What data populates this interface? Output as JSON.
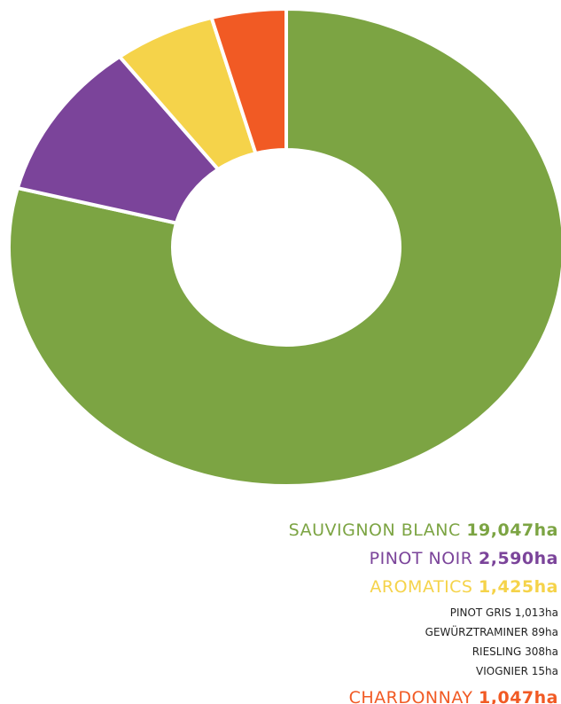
{
  "chart_data": {
    "type": "donut",
    "categories": [
      "SAUVIGNON BLANC",
      "PINOT NOIR",
      "AROMATICS",
      "CHARDONNAY"
    ],
    "values": [
      19047,
      2590,
      1425,
      1047
    ],
    "value_labels": [
      "19,047ha",
      "2,590ha",
      "1,425ha",
      "1,047ha"
    ],
    "colors": [
      "#7ca443",
      "#7b449a",
      "#f5d34a",
      "#f15a24"
    ],
    "sub_items": {
      "parent": "AROMATICS",
      "categories": [
        "PINOT GRIS",
        "GEWÜRZTRAMINER",
        "RIESLING",
        "VIOGNIER"
      ],
      "values": [
        1013,
        89,
        308,
        15
      ],
      "value_labels": [
        "1,013ha",
        "89ha",
        "308ha",
        "15ha"
      ]
    }
  }
}
